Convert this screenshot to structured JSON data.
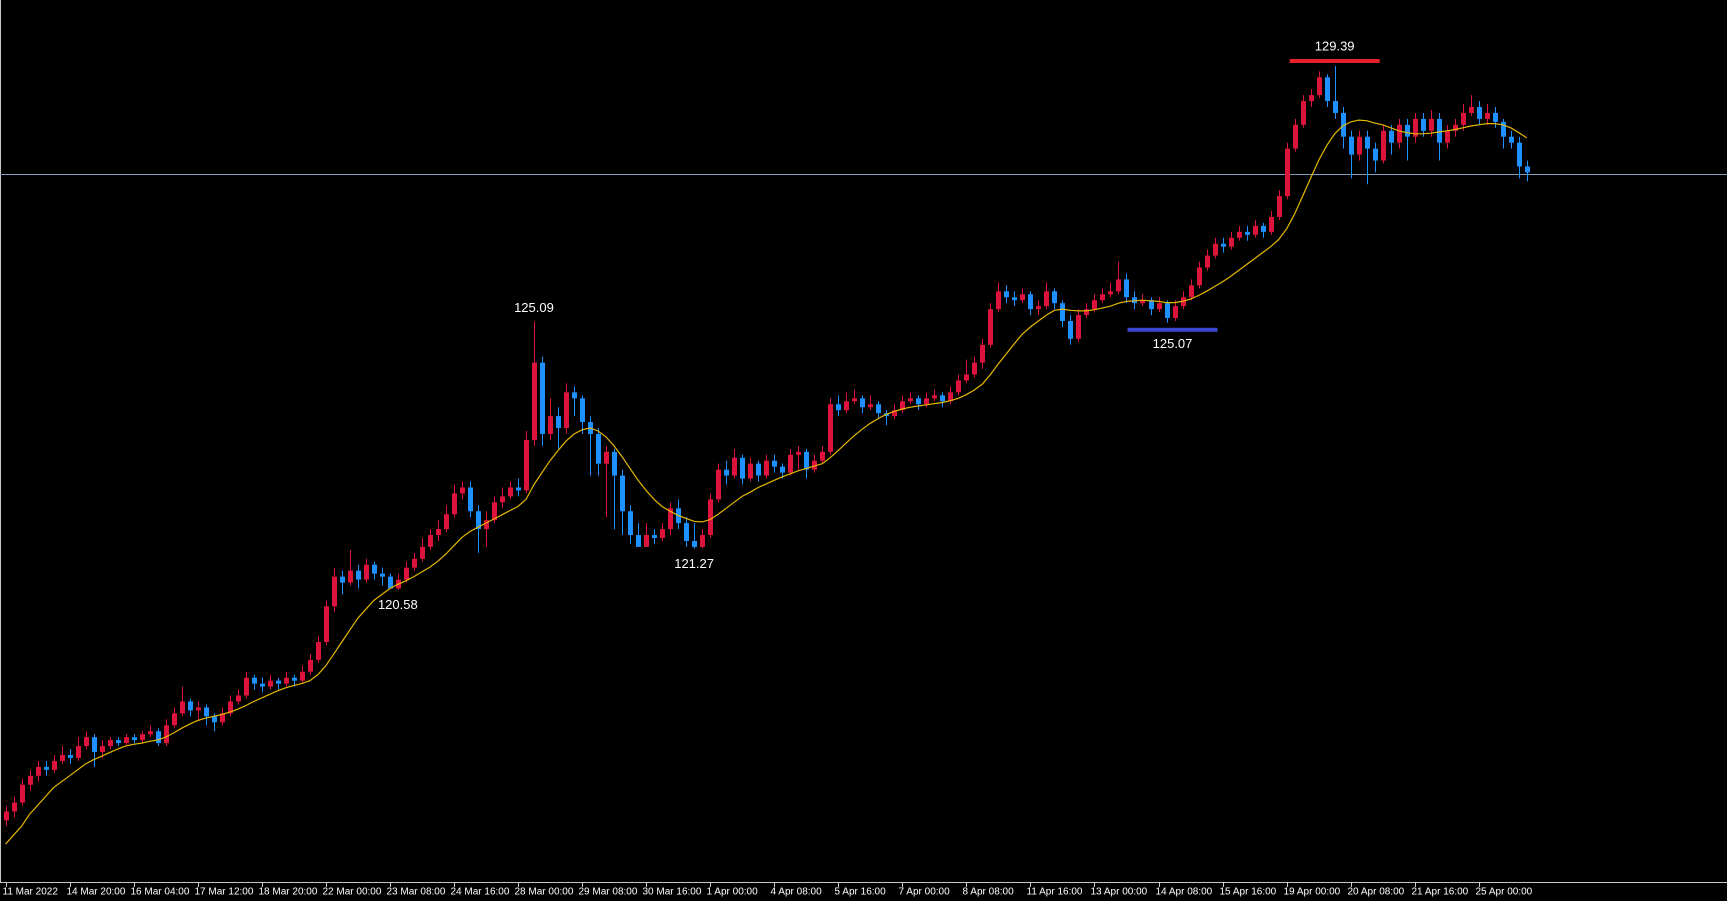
{
  "chart_data": {
    "type": "candlestick",
    "categories": [
      "11 Mar 2022",
      null,
      null,
      null,
      null,
      null,
      null,
      null,
      "14 Mar 20:00",
      null,
      null,
      null,
      null,
      null,
      null,
      null,
      "16 Mar 04:00",
      null,
      null,
      null,
      null,
      null,
      null,
      null,
      "17 Mar 12:00",
      null,
      null,
      null,
      null,
      null,
      null,
      null,
      "18 Mar 20:00",
      null,
      null,
      null,
      null,
      null,
      null,
      null,
      "22 Mar 00:00",
      null,
      null,
      null,
      null,
      null,
      null,
      null,
      "23 Mar 08:00",
      null,
      null,
      null,
      null,
      null,
      null,
      null,
      "24 Mar 16:00",
      null,
      null,
      null,
      null,
      null,
      null,
      null,
      "28 Mar 00:00",
      null,
      null,
      null,
      null,
      null,
      null,
      null,
      "29 Mar 08:00",
      null,
      null,
      null,
      null,
      null,
      null,
      null,
      "30 Mar 16:00",
      null,
      null,
      null,
      null,
      null,
      null,
      null,
      "1 Apr 00:00",
      null,
      null,
      null,
      null,
      null,
      null,
      null,
      "4 Apr 08:00",
      null,
      null,
      null,
      null,
      null,
      null,
      null,
      "5 Apr 16:00",
      null,
      null,
      null,
      null,
      null,
      null,
      null,
      "7 Apr 00:00",
      null,
      null,
      null,
      null,
      null,
      null,
      null,
      "8 Apr 08:00",
      null,
      null,
      null,
      null,
      null,
      null,
      null,
      "11 Apr 16:00",
      null,
      null,
      null,
      null,
      null,
      null,
      null,
      "13 Apr 00:00",
      null,
      null,
      null,
      null,
      null,
      null,
      null,
      "14 Apr 08:00",
      null,
      null,
      null,
      null,
      null,
      null,
      null,
      "15 Apr 16:00",
      null,
      null,
      null,
      null,
      null,
      null,
      null,
      "19 Apr 00:00",
      null,
      null,
      null,
      null,
      null,
      null,
      null,
      "20 Apr 08:00",
      null,
      null,
      null,
      null,
      null,
      null,
      null,
      "21 Apr 16:00",
      null,
      null,
      null,
      null,
      null,
      null,
      null,
      "25 Apr 00:00",
      null,
      null,
      null,
      null,
      null,
      null
    ],
    "open": [
      116.7,
      116.85,
      117.0,
      117.3,
      117.45,
      117.6,
      117.55,
      117.7,
      117.8,
      117.75,
      117.95,
      118.1,
      117.85,
      117.95,
      118.05,
      118.0,
      118.1,
      118.05,
      118.15,
      118.2,
      118.0,
      118.3,
      118.5,
      118.7,
      118.55,
      118.6,
      118.45,
      118.35,
      118.5,
      118.7,
      118.8,
      119.1,
      119.0,
      118.95,
      119.05,
      119.0,
      119.1,
      119.05,
      119.2,
      119.4,
      119.7,
      120.3,
      120.8,
      120.7,
      120.9,
      120.75,
      121.0,
      120.85,
      120.8,
      120.6,
      120.75,
      120.95,
      121.1,
      121.3,
      121.5,
      121.6,
      121.85,
      122.2,
      122.3,
      121.9,
      121.6,
      121.75,
      122.05,
      122.15,
      122.3,
      122.25,
      123.1,
      124.4,
      123.2,
      123.5,
      123.3,
      123.9,
      123.8,
      123.4,
      123.2,
      122.7,
      122.9,
      122.5,
      121.9,
      121.5,
      121.3,
      121.5,
      121.45,
      121.6,
      121.95,
      121.7,
      121.4,
      121.3,
      121.5,
      122.1,
      122.6,
      122.5,
      122.8,
      122.45,
      122.7,
      122.5,
      122.75,
      122.65,
      122.55,
      122.85,
      122.9,
      122.6,
      122.75,
      122.9,
      123.7,
      123.6,
      123.75,
      123.8,
      123.65,
      123.7,
      123.55,
      123.5,
      123.6,
      123.75,
      123.8,
      123.7,
      123.8,
      123.85,
      123.75,
      123.9,
      124.1,
      124.2,
      124.4,
      124.7,
      125.3,
      125.6,
      125.5,
      125.45,
      125.55,
      125.3,
      125.35,
      125.6,
      125.4,
      125.1,
      124.8,
      125.2,
      125.3,
      125.45,
      125.55,
      125.6,
      125.8,
      125.5,
      125.4,
      125.45,
      125.3,
      125.4,
      125.15,
      125.35,
      125.5,
      125.7,
      126.0,
      126.2,
      126.4,
      126.35,
      126.5,
      126.6,
      126.55,
      126.7,
      126.6,
      126.85,
      127.2,
      128.0,
      128.4,
      128.8,
      128.9,
      129.2,
      128.8,
      128.6,
      128.2,
      127.9,
      128.2,
      128.0,
      127.8,
      128.3,
      128.1,
      128.4,
      128.2,
      128.5,
      128.3,
      128.5,
      128.1,
      128.3,
      128.4,
      128.6,
      128.7,
      128.5,
      128.6,
      128.45,
      128.2,
      128.1,
      127.7
    ],
    "high": [
      116.95,
      117.1,
      117.4,
      117.55,
      117.7,
      117.7,
      117.8,
      117.95,
      117.9,
      118.1,
      118.2,
      118.15,
      118.05,
      118.1,
      118.1,
      118.15,
      118.15,
      118.2,
      118.3,
      118.25,
      118.4,
      118.6,
      118.95,
      118.75,
      118.7,
      118.65,
      118.5,
      118.6,
      118.8,
      118.9,
      119.2,
      119.15,
      119.1,
      119.15,
      119.1,
      119.2,
      119.15,
      119.3,
      119.5,
      119.8,
      120.4,
      120.95,
      120.9,
      121.25,
      121.0,
      121.1,
      121.05,
      120.95,
      120.85,
      120.85,
      121.05,
      121.2,
      121.45,
      121.6,
      121.75,
      122.0,
      122.35,
      122.4,
      122.4,
      122.0,
      121.9,
      122.15,
      122.3,
      122.4,
      122.45,
      123.25,
      125.09,
      124.5,
      123.8,
      123.65,
      124.05,
      124.0,
      123.85,
      123.5,
      123.3,
      123.0,
      122.95,
      122.6,
      122.0,
      121.7,
      121.7,
      121.6,
      121.7,
      122.05,
      122.1,
      121.8,
      121.7,
      121.6,
      122.2,
      122.7,
      122.75,
      122.95,
      122.85,
      122.8,
      122.75,
      122.85,
      122.85,
      122.7,
      122.95,
      123.0,
      122.95,
      122.85,
      123.0,
      123.8,
      123.85,
      123.9,
      123.95,
      123.85,
      123.85,
      123.75,
      123.6,
      123.7,
      123.85,
      123.9,
      123.85,
      123.9,
      123.95,
      123.9,
      124.0,
      124.2,
      124.45,
      124.5,
      124.8,
      125.4,
      125.75,
      125.7,
      125.6,
      125.65,
      125.6,
      125.45,
      125.75,
      125.65,
      125.45,
      125.2,
      125.3,
      125.4,
      125.55,
      125.65,
      125.75,
      126.1,
      125.9,
      125.6,
      125.55,
      125.5,
      125.5,
      125.45,
      125.45,
      125.6,
      125.8,
      126.1,
      126.3,
      126.5,
      126.5,
      126.6,
      126.7,
      126.7,
      126.8,
      126.75,
      126.95,
      127.3,
      128.1,
      128.5,
      128.9,
      129.0,
      129.3,
      129.25,
      129.39,
      128.7,
      128.3,
      128.3,
      128.3,
      128.1,
      128.4,
      128.4,
      128.5,
      128.5,
      128.6,
      128.6,
      128.65,
      128.6,
      128.4,
      128.5,
      128.75,
      128.9,
      128.8,
      128.75,
      128.7,
      128.5,
      128.3,
      128.2,
      127.8
    ],
    "low": [
      116.6,
      116.75,
      116.95,
      117.2,
      117.35,
      117.45,
      117.5,
      117.65,
      117.65,
      117.7,
      117.9,
      117.6,
      117.75,
      117.9,
      117.95,
      117.95,
      118.0,
      118.0,
      118.1,
      117.95,
      117.95,
      118.25,
      118.45,
      118.45,
      118.4,
      118.3,
      118.2,
      118.3,
      118.45,
      118.65,
      118.75,
      118.9,
      118.85,
      118.9,
      118.9,
      118.95,
      118.95,
      119.0,
      119.15,
      119.35,
      119.65,
      120.2,
      120.5,
      120.65,
      120.6,
      120.7,
      120.75,
      120.65,
      120.62,
      120.58,
      120.7,
      120.9,
      121.05,
      121.25,
      121.4,
      121.55,
      121.8,
      122.1,
      121.8,
      121.2,
      121.3,
      121.7,
      121.95,
      122.1,
      122.15,
      122.2,
      123.0,
      123.0,
      123.1,
      122.95,
      123.2,
      123.5,
      123.2,
      122.5,
      122.5,
      121.8,
      121.6,
      121.5,
      121.35,
      121.35,
      121.3,
      121.35,
      121.4,
      121.5,
      121.6,
      121.3,
      121.27,
      121.28,
      121.45,
      122.05,
      122.35,
      122.45,
      122.35,
      122.4,
      122.4,
      122.45,
      122.55,
      122.45,
      122.5,
      122.6,
      122.45,
      122.55,
      122.7,
      122.85,
      123.5,
      123.55,
      123.7,
      123.55,
      123.6,
      123.45,
      123.35,
      123.45,
      123.55,
      123.7,
      123.6,
      123.65,
      123.75,
      123.65,
      123.7,
      123.85,
      124.05,
      124.15,
      124.3,
      124.65,
      125.25,
      125.4,
      125.35,
      125.4,
      125.2,
      125.2,
      125.3,
      125.3,
      125.0,
      124.7,
      124.75,
      125.15,
      125.25,
      125.4,
      125.5,
      125.55,
      125.4,
      125.3,
      125.35,
      125.2,
      125.25,
      125.07,
      125.1,
      125.3,
      125.45,
      125.65,
      125.95,
      126.15,
      126.25,
      126.3,
      126.45,
      126.45,
      126.5,
      126.5,
      126.55,
      126.8,
      127.15,
      127.95,
      128.35,
      128.7,
      128.85,
      128.7,
      128.5,
      128.0,
      127.5,
      127.8,
      127.4,
      127.6,
      127.75,
      127.9,
      128.0,
      127.8,
      128.1,
      128.2,
      128.2,
      127.8,
      128.0,
      128.2,
      128.3,
      128.55,
      128.4,
      128.4,
      128.35,
      128.0,
      128.0,
      127.5,
      127.45
    ],
    "close": [
      116.85,
      117.0,
      117.3,
      117.45,
      117.6,
      117.55,
      117.7,
      117.8,
      117.75,
      117.95,
      118.1,
      117.85,
      117.95,
      118.05,
      118.0,
      118.1,
      118.05,
      118.15,
      118.2,
      118.0,
      118.3,
      118.5,
      118.7,
      118.55,
      118.6,
      118.45,
      118.35,
      118.5,
      118.7,
      118.8,
      119.1,
      119.0,
      118.95,
      119.05,
      119.0,
      119.1,
      119.05,
      119.2,
      119.4,
      119.7,
      120.3,
      120.8,
      120.7,
      120.9,
      120.75,
      121.0,
      120.85,
      120.8,
      120.6,
      120.75,
      120.95,
      121.1,
      121.3,
      121.5,
      121.6,
      121.85,
      122.2,
      122.3,
      121.9,
      121.6,
      121.75,
      122.05,
      122.15,
      122.3,
      122.25,
      123.1,
      124.4,
      123.2,
      123.5,
      123.3,
      123.9,
      123.8,
      123.4,
      123.2,
      122.7,
      122.9,
      122.5,
      121.9,
      121.5,
      121.3,
      121.5,
      121.45,
      121.6,
      121.95,
      121.7,
      121.4,
      121.3,
      121.5,
      122.1,
      122.6,
      122.5,
      122.8,
      122.45,
      122.7,
      122.5,
      122.75,
      122.65,
      122.55,
      122.85,
      122.9,
      122.6,
      122.75,
      122.9,
      123.7,
      123.6,
      123.75,
      123.8,
      123.65,
      123.7,
      123.55,
      123.5,
      123.6,
      123.75,
      123.8,
      123.7,
      123.8,
      123.85,
      123.75,
      123.9,
      124.1,
      124.2,
      124.4,
      124.7,
      125.3,
      125.6,
      125.5,
      125.45,
      125.55,
      125.3,
      125.35,
      125.6,
      125.4,
      125.1,
      124.8,
      125.2,
      125.3,
      125.45,
      125.55,
      125.6,
      125.8,
      125.5,
      125.4,
      125.45,
      125.3,
      125.4,
      125.15,
      125.35,
      125.5,
      125.7,
      126.0,
      126.2,
      126.4,
      126.35,
      126.5,
      126.6,
      126.55,
      126.7,
      126.6,
      126.85,
      127.2,
      128.0,
      128.4,
      128.8,
      128.9,
      129.2,
      128.8,
      128.6,
      128.2,
      127.9,
      128.2,
      128.0,
      127.8,
      128.3,
      128.1,
      128.4,
      128.2,
      128.5,
      128.3,
      128.5,
      128.1,
      128.3,
      128.4,
      128.6,
      128.7,
      128.5,
      128.6,
      128.45,
      128.2,
      128.1,
      127.7,
      127.6
    ],
    "ma": [
      116.3,
      116.45,
      116.6,
      116.8,
      116.95,
      117.1,
      117.25,
      117.35,
      117.45,
      117.55,
      117.65,
      117.72,
      117.78,
      117.84,
      117.9,
      117.95,
      117.98,
      118.0,
      118.03,
      118.05,
      118.1,
      118.17,
      118.25,
      118.32,
      118.38,
      118.42,
      118.45,
      118.48,
      118.52,
      118.57,
      118.63,
      118.7,
      118.76,
      118.82,
      118.88,
      118.93,
      118.97,
      119.0,
      119.05,
      119.15,
      119.3,
      119.5,
      119.7,
      119.9,
      120.1,
      120.25,
      120.4,
      120.5,
      120.6,
      120.67,
      120.73,
      120.8,
      120.88,
      120.96,
      121.06,
      121.18,
      121.32,
      121.46,
      121.56,
      121.63,
      121.7,
      121.77,
      121.84,
      121.91,
      121.98,
      122.1,
      122.35,
      122.55,
      122.75,
      122.92,
      123.08,
      123.2,
      123.27,
      123.3,
      123.25,
      123.15,
      123.0,
      122.82,
      122.62,
      122.42,
      122.25,
      122.1,
      121.98,
      121.9,
      121.83,
      121.78,
      121.73,
      121.72,
      121.76,
      121.85,
      121.95,
      122.05,
      122.15,
      122.22,
      122.3,
      122.36,
      122.42,
      122.48,
      122.53,
      122.58,
      122.62,
      122.66,
      122.7,
      122.8,
      122.92,
      123.05,
      123.17,
      123.28,
      123.38,
      123.46,
      123.53,
      123.58,
      123.62,
      123.65,
      123.67,
      123.69,
      123.71,
      123.73,
      123.76,
      123.8,
      123.86,
      123.94,
      124.04,
      124.2,
      124.38,
      124.55,
      124.72,
      124.88,
      125.0,
      125.1,
      125.2,
      125.28,
      125.3,
      125.28,
      125.27,
      125.27,
      125.29,
      125.32,
      125.35,
      125.4,
      125.43,
      125.44,
      125.45,
      125.44,
      125.43,
      125.41,
      125.41,
      125.43,
      125.47,
      125.53,
      125.6,
      125.68,
      125.76,
      125.85,
      125.95,
      126.05,
      126.15,
      126.25,
      126.35,
      126.47,
      126.65,
      126.9,
      127.2,
      127.5,
      127.8,
      128.05,
      128.25,
      128.38,
      128.45,
      128.48,
      128.47,
      128.43,
      128.4,
      128.35,
      128.3,
      128.27,
      128.25,
      128.25,
      128.26,
      128.28,
      128.3,
      128.32,
      128.35,
      128.38,
      128.4,
      128.42,
      128.42,
      128.4,
      128.35,
      128.27,
      128.18
    ],
    "up_color": "#dc143c",
    "down_color": "#1e90ff",
    "ma_color": "#e6b800",
    "ylim": [
      115.68,
      130.5
    ],
    "hline": {
      "value": 127.57,
      "color": "#7f9fc0"
    },
    "annotations": [
      {
        "value": 129.39,
        "at": "high",
        "bar_color": "#e8202a"
      },
      {
        "value": 125.09,
        "at": "high"
      },
      {
        "value": 121.27,
        "at": "low"
      },
      {
        "value": 120.58,
        "at": "low"
      },
      {
        "value": 125.07,
        "at": "low",
        "bar_color": "#3c46d2"
      }
    ]
  }
}
